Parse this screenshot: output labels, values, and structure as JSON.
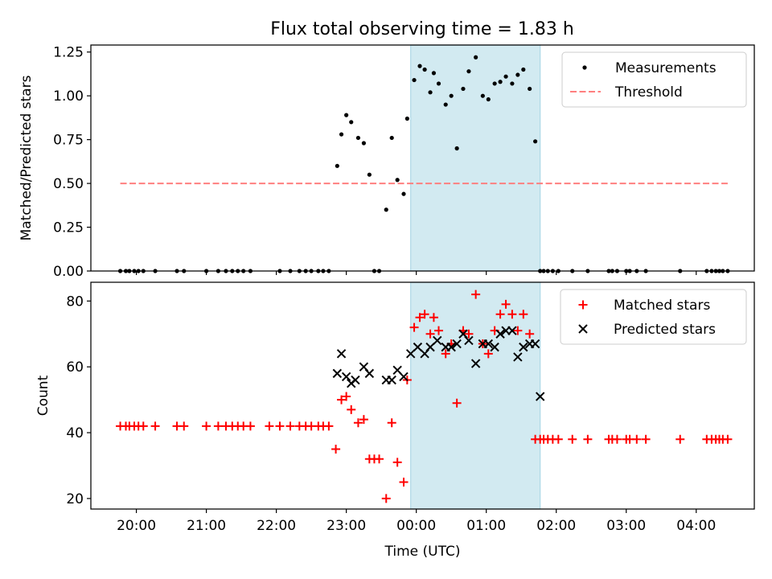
{
  "title": "Flux total observing time = 1.83 h",
  "chart_data": [
    {
      "type": "scatter",
      "ylabel": "Matched/Predicted stars",
      "ylim": [
        0,
        1.29
      ],
      "yticks": [
        0,
        0.25,
        0.5,
        0.75,
        1.0,
        1.25
      ],
      "ytick_labels": [
        "0.00",
        "0.25",
        "0.50",
        "0.75",
        "1.00",
        "1.25"
      ],
      "xlim_hours": [
        19.35,
        28.83
      ],
      "grid": false,
      "legend_position": "top-right",
      "legend": [
        {
          "label": "Measurements",
          "marker": "dot",
          "color": "#000000"
        },
        {
          "label": "Threshold",
          "marker": "dashed-line",
          "color": "#ff7f7f"
        }
      ],
      "shaded_span": {
        "from": 23.92,
        "to": 25.77,
        "color": "#add8e6"
      },
      "threshold": {
        "y": 0.5,
        "x_from": 19.77,
        "x_to": 28.45
      },
      "series": [
        {
          "name": "Measurements",
          "color": "#000000",
          "x": [
            19.77,
            19.85,
            19.9,
            19.97,
            20.03,
            20.1,
            20.27,
            20.58,
            20.68,
            21.0,
            21.17,
            21.28,
            21.37,
            21.45,
            21.53,
            21.63,
            22.05,
            22.2,
            22.33,
            22.42,
            22.5,
            22.6,
            22.67,
            22.75,
            22.87,
            22.93,
            23.0,
            23.07,
            23.17,
            23.25,
            23.33,
            23.4,
            23.47,
            23.57,
            23.65,
            23.73,
            23.82,
            23.87,
            23.97,
            24.05,
            24.12,
            24.2,
            24.25,
            24.32,
            24.42,
            24.5,
            24.58,
            24.67,
            24.75,
            24.85,
            24.95,
            25.03,
            25.12,
            25.2,
            25.28,
            25.37,
            25.45,
            25.53,
            25.62,
            25.7,
            25.77,
            25.82,
            25.88,
            25.95,
            26.03,
            26.23,
            26.45,
            26.75,
            26.8,
            26.87,
            27.0,
            27.05,
            27.15,
            27.28,
            27.77,
            28.15,
            28.22,
            28.28,
            28.33,
            28.38,
            28.45
          ],
          "y": [
            0,
            0,
            0,
            0,
            0,
            0,
            0,
            0,
            0,
            0,
            0,
            0,
            0,
            0,
            0,
            0,
            0,
            0,
            0,
            0,
            0,
            0,
            0,
            0,
            0.6,
            0.78,
            0.89,
            0.85,
            0.76,
            0.73,
            0.55,
            0,
            0,
            0.35,
            0.76,
            0.52,
            0.44,
            0.87,
            1.09,
            1.17,
            1.15,
            1.02,
            1.13,
            1.07,
            0.95,
            1.0,
            0.7,
            1.04,
            1.14,
            1.22,
            1.0,
            0.98,
            1.07,
            1.08,
            1.11,
            1.07,
            1.12,
            1.15,
            1.04,
            0.74,
            0,
            0,
            0,
            0,
            0,
            0,
            0,
            0,
            0,
            0,
            0,
            0,
            0,
            0,
            0,
            0,
            0,
            0,
            0,
            0,
            0
          ]
        }
      ]
    },
    {
      "type": "scatter",
      "xlabel": "Time (UTC)",
      "ylabel": "Count",
      "ylim": [
        16.8,
        85.7
      ],
      "yticks": [
        20,
        40,
        60,
        80
      ],
      "ytick_labels": [
        "20",
        "40",
        "60",
        "80"
      ],
      "xlim_hours": [
        19.35,
        28.83
      ],
      "xticks": [
        20,
        21,
        22,
        23,
        24,
        25,
        26,
        27,
        28
      ],
      "xtick_labels": [
        "20:00",
        "21:00",
        "22:00",
        "23:00",
        "00:00",
        "01:00",
        "02:00",
        "03:00",
        "04:00"
      ],
      "grid": false,
      "legend_position": "top-right",
      "legend": [
        {
          "label": "Matched stars",
          "marker": "plus",
          "color": "#ff0000"
        },
        {
          "label": "Predicted stars",
          "marker": "cross",
          "color": "#000000"
        }
      ],
      "shaded_span": {
        "from": 23.92,
        "to": 25.77,
        "color": "#add8e6"
      },
      "series": [
        {
          "name": "Matched stars",
          "marker": "plus",
          "color": "#ff0000",
          "x": [
            19.77,
            19.85,
            19.9,
            19.97,
            20.03,
            20.1,
            20.27,
            20.58,
            20.68,
            21.0,
            21.17,
            21.28,
            21.37,
            21.45,
            21.53,
            21.63,
            21.9,
            22.05,
            22.2,
            22.33,
            22.42,
            22.5,
            22.6,
            22.67,
            22.75,
            22.85,
            22.93,
            23.0,
            23.07,
            23.17,
            23.25,
            23.33,
            23.4,
            23.47,
            23.57,
            23.65,
            23.73,
            23.82,
            23.87,
            23.97,
            24.05,
            24.12,
            24.2,
            24.25,
            24.32,
            24.42,
            24.5,
            24.58,
            24.67,
            24.75,
            24.85,
            24.95,
            25.03,
            25.12,
            25.2,
            25.28,
            25.37,
            25.45,
            25.53,
            25.62,
            25.7,
            25.77,
            25.82,
            25.88,
            25.95,
            26.03,
            26.23,
            26.45,
            26.75,
            26.8,
            26.87,
            27.0,
            27.05,
            27.15,
            27.28,
            27.77,
            28.15,
            28.22,
            28.28,
            28.33,
            28.38,
            28.45
          ],
          "y": [
            42,
            42,
            42,
            42,
            42,
            42,
            42,
            42,
            42,
            42,
            42,
            42,
            42,
            42,
            42,
            42,
            42,
            42,
            42,
            42,
            42,
            42,
            42,
            42,
            42,
            35,
            50,
            51,
            47,
            43,
            44,
            32,
            32,
            32,
            20,
            43,
            31,
            25,
            56,
            72,
            75,
            76,
            70,
            75,
            71,
            64,
            67,
            49,
            71,
            70,
            82,
            67,
            64,
            71,
            76,
            79,
            76,
            71,
            76,
            70,
            38,
            38,
            38,
            38,
            38,
            38,
            38,
            38,
            38,
            38,
            38,
            38,
            38,
            38,
            38,
            38,
            38,
            38,
            38,
            38,
            38,
            38
          ]
        },
        {
          "name": "Predicted stars",
          "marker": "cross",
          "color": "#000000",
          "x": [
            22.87,
            22.93,
            23.0,
            23.07,
            23.13,
            23.25,
            23.33,
            23.57,
            23.65,
            23.73,
            23.82,
            23.92,
            24.02,
            24.12,
            24.2,
            24.3,
            24.42,
            24.5,
            24.58,
            24.67,
            24.75,
            24.85,
            24.95,
            25.03,
            25.12,
            25.2,
            25.28,
            25.37,
            25.45,
            25.53,
            25.62,
            25.7,
            25.77
          ],
          "y": [
            58,
            64,
            57,
            55,
            56,
            60,
            58,
            56,
            56,
            59,
            57,
            64,
            66,
            64,
            66,
            68,
            66,
            66,
            67,
            70,
            68,
            61,
            67,
            67,
            66,
            70,
            71,
            71,
            63,
            66,
            67,
            67,
            51
          ]
        }
      ]
    }
  ]
}
